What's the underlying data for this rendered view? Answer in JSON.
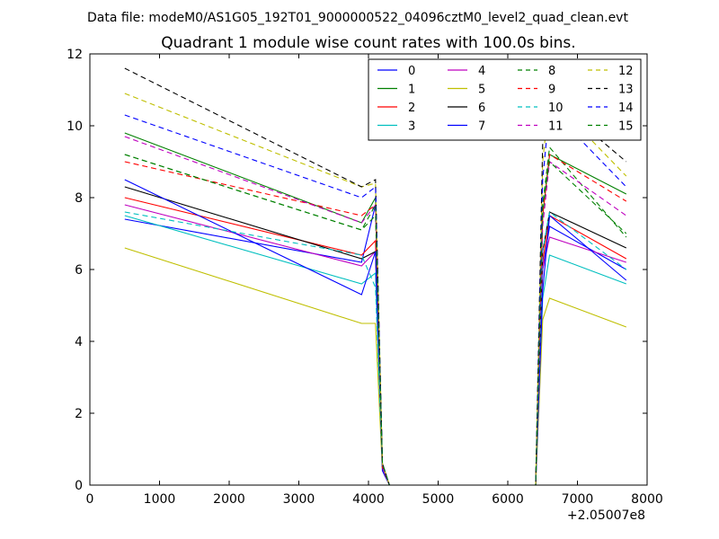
{
  "supertitle": "Data file: modeM0/AS1G05_192T01_9000000522_04096cztM0_level2_quad_clean.evt",
  "chart_data": {
    "type": "line",
    "title": "Quadrant 1 module wise count rates with 100.0s bins.",
    "xlabel": "",
    "ylabel": "",
    "xlim": [
      0,
      8000
    ],
    "ylim": [
      0,
      12
    ],
    "x_offset_label": "+2.05007e8",
    "xticks": [
      "0",
      "1000",
      "2000",
      "3000",
      "4000",
      "5000",
      "6000",
      "7000",
      "8000"
    ],
    "yticks": [
      "0",
      "2",
      "4",
      "6",
      "8",
      "10",
      "12"
    ],
    "grid": false,
    "legend_position": "top-right",
    "x": [
      500,
      3900,
      4100,
      4200,
      4300,
      6300,
      6400,
      6500,
      6600,
      7700
    ],
    "series": [
      {
        "name": "0",
        "color": "#0000ff",
        "dash": "solid",
        "values": [
          7.4,
          6.2,
          7.8,
          0.6,
          0.0,
          0.0,
          0.0,
          6.0,
          7.2,
          6.0
        ]
      },
      {
        "name": "1",
        "color": "#008000",
        "dash": "solid",
        "values": [
          9.8,
          7.3,
          8.0,
          0.6,
          0.0,
          0.0,
          0.0,
          7.5,
          9.2,
          8.1
        ]
      },
      {
        "name": "2",
        "color": "#ff0000",
        "dash": "solid",
        "values": [
          8.0,
          6.4,
          6.8,
          0.5,
          0.0,
          0.0,
          0.0,
          6.2,
          7.5,
          6.3
        ]
      },
      {
        "name": "3",
        "color": "#00bfbf",
        "dash": "solid",
        "values": [
          7.5,
          5.6,
          5.9,
          0.5,
          0.0,
          0.0,
          0.0,
          5.2,
          6.4,
          5.6
        ]
      },
      {
        "name": "4",
        "color": "#bf00bf",
        "dash": "solid",
        "values": [
          7.8,
          6.1,
          6.5,
          0.5,
          0.0,
          0.0,
          0.0,
          6.0,
          6.9,
          6.2
        ]
      },
      {
        "name": "5",
        "color": "#bfbf00",
        "dash": "solid",
        "values": [
          6.6,
          4.5,
          4.5,
          0.4,
          0.0,
          0.0,
          0.0,
          4.6,
          5.2,
          4.4
        ]
      },
      {
        "name": "6",
        "color": "#000000",
        "dash": "solid",
        "values": [
          8.3,
          6.3,
          6.5,
          0.5,
          0.0,
          0.0,
          0.0,
          6.5,
          7.6,
          6.6
        ]
      },
      {
        "name": "7",
        "color": "#0000ff",
        "dash": "solid",
        "values": [
          8.5,
          5.3,
          6.5,
          0.4,
          0.0,
          0.0,
          0.0,
          5.4,
          7.5,
          5.7
        ]
      },
      {
        "name": "8",
        "color": "#008000",
        "dash": "dashed",
        "values": [
          9.2,
          7.1,
          7.5,
          0.5,
          0.0,
          0.0,
          0.0,
          7.8,
          9.4,
          6.9
        ]
      },
      {
        "name": "9",
        "color": "#ff0000",
        "dash": "dashed",
        "values": [
          9.0,
          7.5,
          7.8,
          0.5,
          0.0,
          0.0,
          0.0,
          7.5,
          9.2,
          7.9
        ]
      },
      {
        "name": "10",
        "color": "#00bfbf",
        "dash": "dashed",
        "values": [
          7.6,
          6.4,
          5.5,
          0.5,
          0.0,
          0.0,
          0.0,
          6.5,
          7.6,
          6.0
        ]
      },
      {
        "name": "11",
        "color": "#bf00bf",
        "dash": "dashed",
        "values": [
          9.7,
          7.3,
          7.8,
          0.5,
          0.0,
          0.0,
          0.0,
          7.2,
          9.0,
          7.5
        ]
      },
      {
        "name": "12",
        "color": "#bfbf00",
        "dash": "dashed",
        "values": [
          10.9,
          8.3,
          8.4,
          0.6,
          0.0,
          0.0,
          0.0,
          9.0,
          10.8,
          8.6
        ]
      },
      {
        "name": "13",
        "color": "#000000",
        "dash": "dashed",
        "values": [
          11.6,
          8.3,
          8.5,
          0.6,
          0.0,
          0.0,
          0.0,
          9.5,
          10.8,
          9.0
        ]
      },
      {
        "name": "14",
        "color": "#0000ff",
        "dash": "dashed",
        "values": [
          10.3,
          8.0,
          8.3,
          0.6,
          0.0,
          0.0,
          0.0,
          8.5,
          10.5,
          8.3
        ]
      },
      {
        "name": "15",
        "color": "#008000",
        "dash": "dashed",
        "values": [
          9.2,
          7.1,
          7.8,
          0.6,
          0.0,
          0.0,
          0.0,
          7.8,
          9.0,
          7.0
        ]
      }
    ]
  }
}
